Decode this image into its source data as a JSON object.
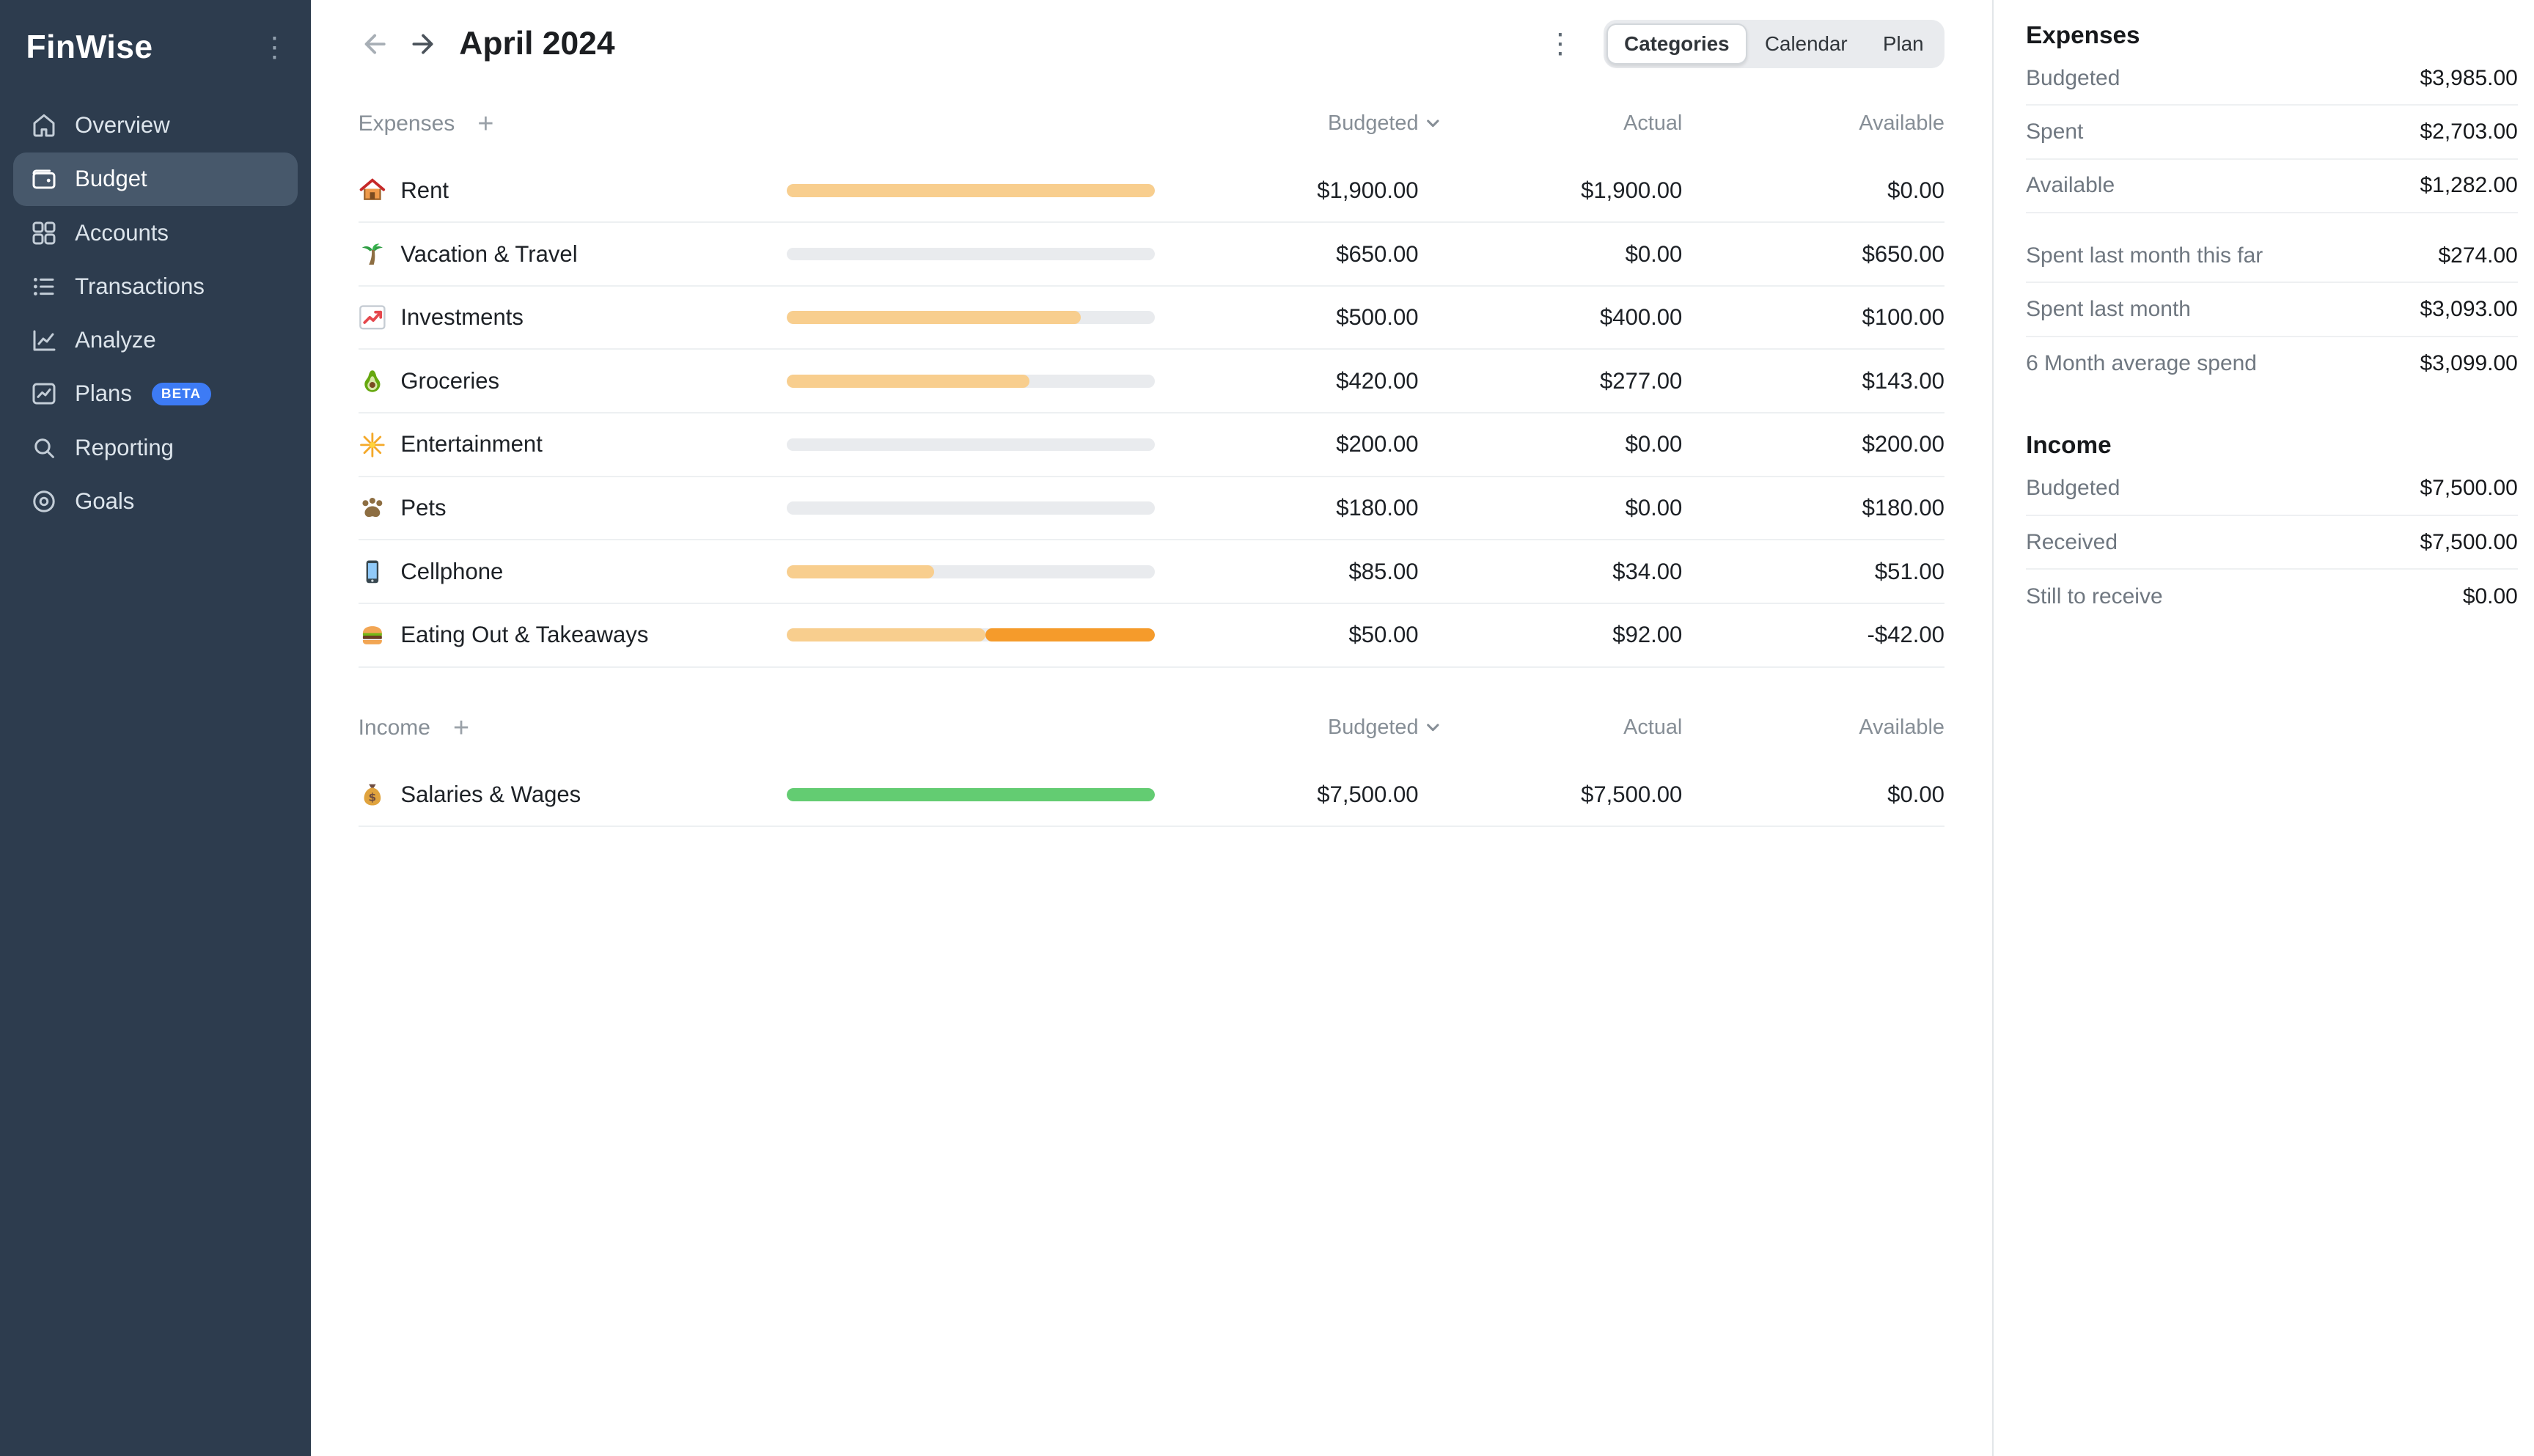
{
  "app": {
    "name": "FinWise"
  },
  "icons": {
    "add": "+",
    "more": "⋮"
  },
  "sidebar": {
    "items": [
      {
        "label": "Overview",
        "icon": "home",
        "active": false
      },
      {
        "label": "Budget",
        "icon": "wallet",
        "active": true
      },
      {
        "label": "Accounts",
        "icon": "grid",
        "active": false
      },
      {
        "label": "Transactions",
        "icon": "list",
        "active": false
      },
      {
        "label": "Analyze",
        "icon": "analyze",
        "active": false
      },
      {
        "label": "Plans",
        "icon": "trend",
        "active": false,
        "badge": "BETA"
      },
      {
        "label": "Reporting",
        "icon": "search",
        "active": false
      },
      {
        "label": "Goals",
        "icon": "target",
        "active": false
      }
    ]
  },
  "header": {
    "title": "April 2024",
    "view_tabs": [
      {
        "label": "Categories",
        "active": true
      },
      {
        "label": "Calendar",
        "active": false
      },
      {
        "label": "Plan",
        "active": false
      }
    ]
  },
  "table": {
    "columns": {
      "budgeted": "Budgeted",
      "actual": "Actual",
      "available": "Available"
    },
    "sections": [
      {
        "title": "Expenses",
        "rows": [
          {
            "icon": "house",
            "name": "Rent",
            "budgeted": "$1,900.00",
            "actual": "$1,900.00",
            "available": "$0.00",
            "bar": {
              "fill": 100,
              "over": 0,
              "color": "orange"
            }
          },
          {
            "icon": "palm",
            "name": "Vacation & Travel",
            "budgeted": "$650.00",
            "actual": "$0.00",
            "available": "$650.00",
            "bar": {
              "fill": 0,
              "over": 0,
              "color": "orange"
            }
          },
          {
            "icon": "chart",
            "name": "Investments",
            "budgeted": "$500.00",
            "actual": "$400.00",
            "available": "$100.00",
            "bar": {
              "fill": 80,
              "over": 0,
              "color": "orange"
            }
          },
          {
            "icon": "avocado",
            "name": "Groceries",
            "budgeted": "$420.00",
            "actual": "$277.00",
            "available": "$143.00",
            "bar": {
              "fill": 66,
              "over": 0,
              "color": "orange"
            }
          },
          {
            "icon": "sparkler",
            "name": "Entertainment",
            "budgeted": "$200.00",
            "actual": "$0.00",
            "available": "$200.00",
            "bar": {
              "fill": 0,
              "over": 0,
              "color": "orange"
            }
          },
          {
            "icon": "paw",
            "name": "Pets",
            "budgeted": "$180.00",
            "actual": "$0.00",
            "available": "$180.00",
            "bar": {
              "fill": 0,
              "over": 0,
              "color": "orange"
            }
          },
          {
            "icon": "phone",
            "name": "Cellphone",
            "budgeted": "$85.00",
            "actual": "$34.00",
            "available": "$51.00",
            "bar": {
              "fill": 40,
              "over": 0,
              "color": "orange"
            }
          },
          {
            "icon": "burger",
            "name": "Eating Out & Takeaways",
            "budgeted": "$50.00",
            "actual": "$92.00",
            "available": "-$42.00",
            "bar": {
              "fill": 54,
              "over": 46,
              "color": "orange"
            }
          }
        ]
      },
      {
        "title": "Income",
        "rows": [
          {
            "icon": "moneybag",
            "name": "Salaries & Wages",
            "budgeted": "$7,500.00",
            "actual": "$7,500.00",
            "available": "$0.00",
            "bar": {
              "fill": 100,
              "over": 0,
              "color": "green"
            }
          }
        ]
      }
    ]
  },
  "summary": {
    "sections": [
      {
        "title": "Expenses",
        "groups": [
          [
            {
              "label": "Budgeted",
              "value": "$3,985.00"
            },
            {
              "label": "Spent",
              "value": "$2,703.00"
            },
            {
              "label": "Available",
              "value": "$1,282.00"
            }
          ],
          [
            {
              "label": "Spent last month this far",
              "value": "$274.00"
            },
            {
              "label": "Spent last month",
              "value": "$3,093.00"
            },
            {
              "label": "6 Month average spend",
              "value": "$3,099.00"
            }
          ]
        ]
      },
      {
        "title": "Income",
        "groups": [
          [
            {
              "label": "Budgeted",
              "value": "$7,500.00"
            },
            {
              "label": "Received",
              "value": "$7,500.00"
            },
            {
              "label": "Still to receive",
              "value": "$0.00"
            }
          ]
        ]
      }
    ]
  },
  "colors": {
    "sidebar_bg": "#2d3c4e",
    "sidebar_active_bg": "#47586b",
    "badge_blue": "#3d7bf5",
    "bar_track": "#e9ebee",
    "bar_budget_fill": "#f8ce8e",
    "bar_overspent_fill": "#f59b2b",
    "bar_income_fill": "#63cc72",
    "row_divider": "#edf0f2",
    "text_primary": "#1d2126",
    "text_muted": "#868e96"
  }
}
